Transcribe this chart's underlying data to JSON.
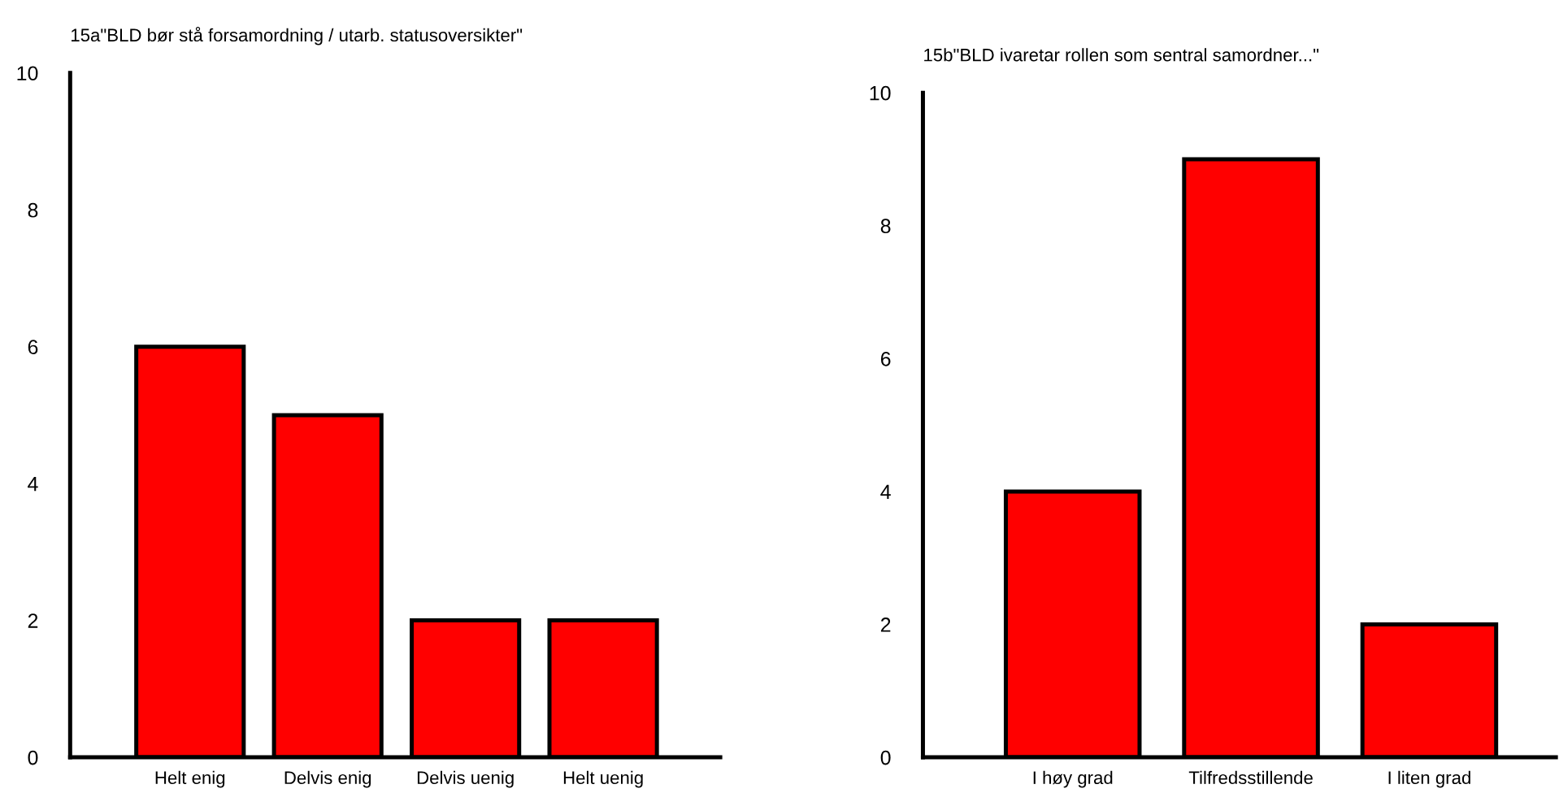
{
  "chart_data": [
    {
      "type": "bar",
      "title": "15a\"BLD bør stå forsamordning / utarb. statusoversikter\"",
      "categories": [
        "Helt enig",
        "Delvis enig",
        "Delvis uenig",
        "Helt uenig"
      ],
      "values": [
        6,
        5,
        2,
        2
      ],
      "color": "#ff0000",
      "ylim": [
        0,
        10
      ],
      "yticks": [
        0,
        2,
        4,
        6,
        8,
        10
      ],
      "grid": false,
      "legend": false
    },
    {
      "type": "bar",
      "title": "15b\"BLD ivaretar rollen som sentral samordner...\"",
      "categories": [
        "I høy grad",
        "Tilfredsstillende",
        "I liten grad"
      ],
      "values": [
        4,
        9,
        2
      ],
      "color": "#ff0000",
      "ylim": [
        0,
        10
      ],
      "yticks": [
        0,
        2,
        4,
        6,
        8,
        10
      ],
      "grid": false,
      "legend": false
    }
  ]
}
